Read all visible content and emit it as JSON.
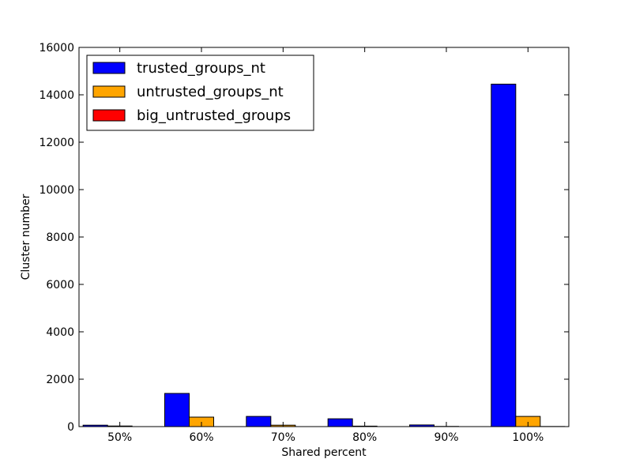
{
  "chart_data": {
    "type": "bar",
    "categories": [
      "50%",
      "60%",
      "70%",
      "80%",
      "90%",
      "100%"
    ],
    "series": [
      {
        "name": "trusted_groups_nt",
        "color": "#0000ff",
        "values": [
          60,
          1400,
          430,
          330,
          70,
          14450
        ]
      },
      {
        "name": "untrusted_groups_nt",
        "color": "#ffa500",
        "values": [
          25,
          400,
          60,
          20,
          8,
          430
        ]
      },
      {
        "name": "big_untrusted_groups",
        "color": "#ff0000",
        "values": [
          0,
          0,
          0,
          0,
          0,
          5
        ]
      }
    ],
    "title": "",
    "xlabel": "Shared percent",
    "ylabel": "Cluster number",
    "ylim": [
      0,
      16000
    ],
    "yticks": [
      0,
      2000,
      4000,
      6000,
      8000,
      10000,
      12000,
      14000,
      16000
    ],
    "legend": "top-left",
    "grid": false
  }
}
